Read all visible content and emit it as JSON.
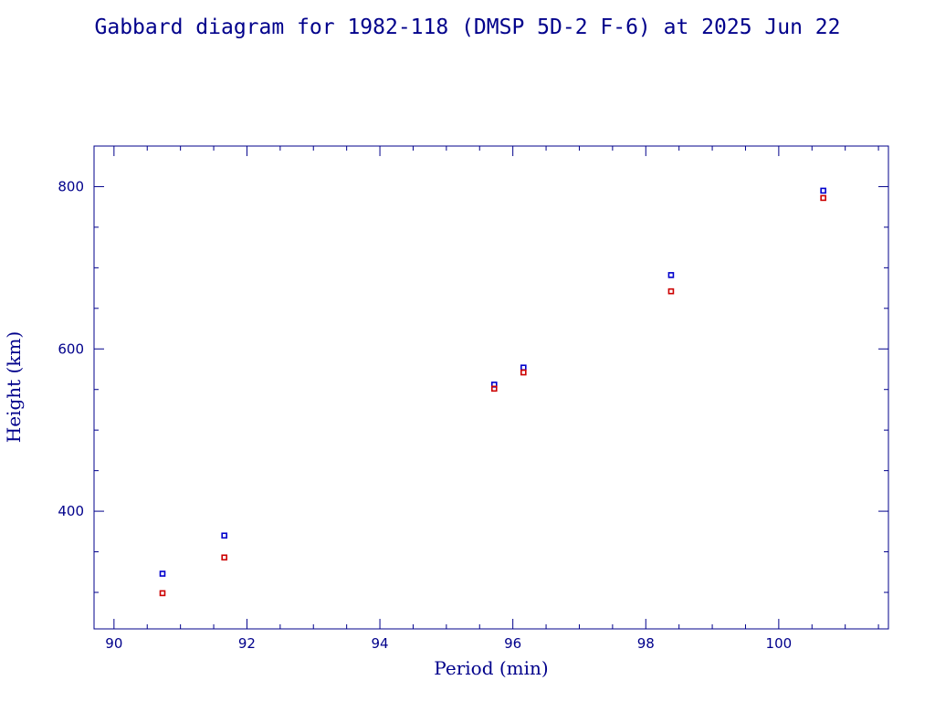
{
  "chart_data": {
    "type": "scatter",
    "title": "Gabbard diagram for 1982-118 (DMSP 5D-2 F-6) at 2025 Jun 22",
    "xlabel": "Period (min)",
    "ylabel": "Height (km)",
    "xlim": [
      89.7,
      101.65
    ],
    "ylim": [
      255,
      850
    ],
    "x_ticks": [
      90,
      92,
      94,
      96,
      98,
      100
    ],
    "y_ticks": [
      400,
      600,
      800
    ],
    "x_minor_step": 0.5,
    "y_minor_step": 50,
    "grid": false,
    "series": [
      {
        "color": "#0000cc",
        "points": [
          {
            "x": 90.73,
            "y": 323
          },
          {
            "x": 91.66,
            "y": 370
          },
          {
            "x": 95.72,
            "y": 556
          },
          {
            "x": 96.16,
            "y": 577
          },
          {
            "x": 98.38,
            "y": 691
          },
          {
            "x": 100.67,
            "y": 795
          }
        ]
      },
      {
        "color": "#cc0000",
        "points": [
          {
            "x": 90.73,
            "y": 299
          },
          {
            "x": 91.66,
            "y": 343
          },
          {
            "x": 95.72,
            "y": 551
          },
          {
            "x": 96.16,
            "y": 571
          },
          {
            "x": 98.38,
            "y": 671
          },
          {
            "x": 100.67,
            "y": 786
          }
        ]
      }
    ]
  }
}
